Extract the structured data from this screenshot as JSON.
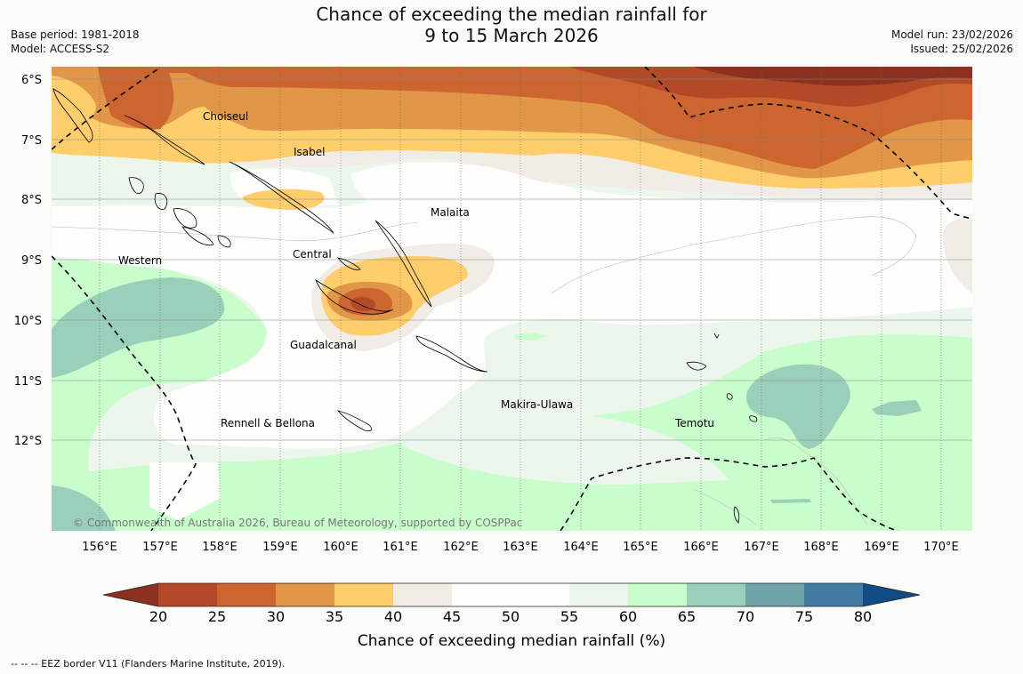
{
  "header": {
    "title_line1": "Chance of exceeding the median rainfall for",
    "title_line2": "9 to 15 March 2026",
    "base_period": "Base period: 1981-2018",
    "model": "Model: ACCESS-S2",
    "model_run": "Model run: 23/02/2026",
    "issued": "Issued: 25/02/2026"
  },
  "map": {
    "lat_labels": [
      "6°S",
      "7°S",
      "8°S",
      "9°S",
      "10°S",
      "11°S",
      "12°S"
    ],
    "lon_labels": [
      "156°E",
      "157°E",
      "158°E",
      "159°E",
      "160°E",
      "161°E",
      "162°E",
      "163°E",
      "164°E",
      "165°E",
      "166°E",
      "167°E",
      "168°E",
      "169°E",
      "170°E"
    ],
    "regions": [
      "Choiseul",
      "Isabel",
      "Malaita",
      "Central",
      "Western",
      "Guadalcanal",
      "Makira-Ulawa",
      "Temotu",
      "Rennell & Bellona"
    ],
    "copyright": "© Commonwealth of Australia 2026, Bureau of Meteorology, supported by COSPPac"
  },
  "colorbar": {
    "ticks": [
      "20",
      "25",
      "30",
      "35",
      "40",
      "45",
      "50",
      "55",
      "60",
      "65",
      "70",
      "75",
      "80"
    ],
    "title": "Chance of exceeding median rainfall (%)",
    "colors": {
      "below20": "#8c3120",
      "c20_25": "#b24a28",
      "c25_30": "#cc6530",
      "c30_35": "#e29648",
      "c35_40": "#fecd6c",
      "c40_45": "#f1ece6",
      "c45_50": "#fefefd",
      "c50_55": "#fefefe",
      "c55_60": "#ecf6ec",
      "c60_65": "#c9fdcb",
      "c65_70": "#9acfb9",
      "c70_75": "#6fa5a8",
      "c75_80": "#427aa0",
      "above80": "#124c84"
    }
  },
  "footer": {
    "eez_note": "--  --  -- EEZ border V11 (Flanders Marine Institute, 2019)."
  }
}
